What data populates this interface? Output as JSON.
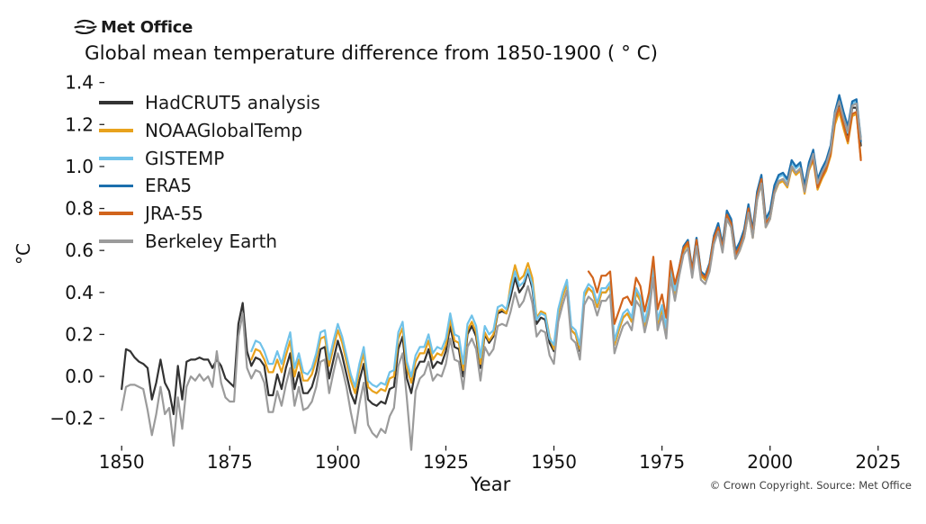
{
  "brand": {
    "logo_text": "Met Office"
  },
  "footer": {
    "copyright": "© Crown Copyright. Source: Met Office"
  },
  "chart_data": {
    "type": "line",
    "title": "Global mean temperature difference from 1850-1900 ( ° C)",
    "xlabel": "Year",
    "ylabel": "°C",
    "grid": false,
    "legend_position": "upper-left-inside",
    "xlim": [
      1846,
      2029
    ],
    "ylim": [
      -0.33,
      1.45
    ],
    "x_tick_values": [
      1850,
      1875,
      1900,
      1925,
      1950,
      1975,
      2000,
      2025
    ],
    "x_tick_labels": [
      "1850",
      "1875",
      "1900",
      "1925",
      "1950",
      "1975",
      "2000",
      "2025"
    ],
    "y_tick_values": [
      -0.2,
      0.0,
      0.2,
      0.4,
      0.6,
      0.8,
      1.0,
      1.2,
      1.4
    ],
    "y_tick_labels": [
      "−0.2",
      "0.0",
      "0.2",
      "0.4",
      "0.6",
      "0.8",
      "1.0",
      "1.2",
      "1.4"
    ],
    "series": [
      {
        "name": "HadCRUT5 analysis",
        "color": "#333333",
        "start_year": 1850,
        "values": [
          -0.06,
          0.13,
          0.12,
          0.09,
          0.07,
          0.06,
          0.04,
          -0.11,
          -0.03,
          0.08,
          -0.03,
          -0.07,
          -0.18,
          0.05,
          -0.11,
          0.07,
          0.08,
          0.08,
          0.09,
          0.08,
          0.08,
          0.04,
          0.08,
          0.05,
          -0.01,
          -0.03,
          -0.05,
          0.25,
          0.35,
          0.12,
          0.05,
          0.09,
          0.08,
          0.05,
          -0.09,
          -0.09,
          0.01,
          -0.06,
          0.04,
          0.11,
          -0.06,
          0.02,
          -0.08,
          -0.08,
          -0.05,
          0.02,
          0.13,
          0.14,
          -0.01,
          0.08,
          0.17,
          0.1,
          0.01,
          -0.08,
          -0.13,
          -0.02,
          0.06,
          -0.11,
          -0.13,
          -0.14,
          -0.12,
          -0.13,
          -0.06,
          -0.05,
          0.13,
          0.19,
          -0.01,
          -0.08,
          0.03,
          0.07,
          0.07,
          0.13,
          0.04,
          0.07,
          0.06,
          0.12,
          0.24,
          0.14,
          0.13,
          0.0,
          0.2,
          0.24,
          0.19,
          0.04,
          0.2,
          0.16,
          0.19,
          0.3,
          0.31,
          0.3,
          0.38,
          0.47,
          0.4,
          0.43,
          0.5,
          0.42,
          0.25,
          0.28,
          0.27,
          0.16,
          0.12,
          0.3,
          0.38,
          0.45,
          0.22,
          0.2,
          0.12,
          0.38,
          0.42,
          0.4,
          0.33,
          0.4,
          0.4,
          0.43,
          0.15,
          0.22,
          0.28,
          0.3,
          0.26,
          0.4,
          0.36,
          0.24,
          0.33,
          0.5,
          0.25,
          0.32,
          0.21,
          0.5,
          0.39,
          0.5,
          0.6,
          0.63,
          0.49,
          0.64,
          0.48,
          0.46,
          0.52,
          0.65,
          0.71,
          0.61,
          0.76,
          0.72,
          0.57,
          0.61,
          0.67,
          0.79,
          0.67,
          0.85,
          0.93,
          0.72,
          0.76,
          0.88,
          0.93,
          0.94,
          0.91,
          1.0,
          0.97,
          0.99,
          0.88,
          0.99,
          1.05,
          0.91,
          0.96,
          1.0,
          1.07,
          1.23,
          1.3,
          1.22,
          1.15,
          1.28,
          1.28,
          1.1
        ]
      },
      {
        "name": "NOAAGlobalTemp",
        "color": "#e8a21d",
        "start_year": 1880,
        "values": [
          0.08,
          0.13,
          0.12,
          0.08,
          0.02,
          0.02,
          0.08,
          0.02,
          0.1,
          0.17,
          0.0,
          0.08,
          -0.02,
          -0.02,
          0.01,
          0.08,
          0.18,
          0.19,
          0.05,
          0.14,
          0.22,
          0.16,
          0.07,
          -0.02,
          -0.08,
          0.03,
          0.11,
          -0.05,
          -0.07,
          -0.08,
          -0.06,
          -0.07,
          -0.01,
          0.0,
          0.18,
          0.23,
          0.04,
          -0.03,
          0.07,
          0.11,
          0.11,
          0.17,
          0.08,
          0.11,
          0.1,
          0.15,
          0.27,
          0.17,
          0.16,
          0.03,
          0.22,
          0.26,
          0.21,
          0.06,
          0.21,
          0.17,
          0.2,
          0.31,
          0.32,
          0.3,
          0.44,
          0.53,
          0.46,
          0.48,
          0.54,
          0.47,
          0.28,
          0.31,
          0.3,
          0.19,
          0.13,
          0.3,
          0.38,
          0.44,
          0.22,
          0.2,
          0.13,
          0.38,
          0.42,
          0.4,
          0.33,
          0.4,
          0.4,
          0.43,
          0.15,
          0.22,
          0.28,
          0.3,
          0.26,
          0.4,
          0.36,
          0.24,
          0.33,
          0.5,
          0.25,
          0.32,
          0.21,
          0.5,
          0.39,
          0.5,
          0.6,
          0.63,
          0.49,
          0.64,
          0.48,
          0.46,
          0.52,
          0.65,
          0.7,
          0.6,
          0.75,
          0.71,
          0.56,
          0.6,
          0.66,
          0.78,
          0.66,
          0.84,
          0.92,
          0.71,
          0.75,
          0.87,
          0.92,
          0.93,
          0.9,
          0.99,
          0.96,
          0.98,
          0.87,
          0.98,
          1.03,
          0.89,
          0.94,
          0.98,
          1.05,
          1.2,
          1.26,
          1.18,
          1.11,
          1.24,
          1.25,
          1.04
        ]
      },
      {
        "name": "GISTEMP",
        "color": "#70c2e9",
        "start_year": 1880,
        "values": [
          0.12,
          0.17,
          0.16,
          0.12,
          0.06,
          0.06,
          0.12,
          0.06,
          0.14,
          0.21,
          0.04,
          0.11,
          0.02,
          0.01,
          0.04,
          0.11,
          0.21,
          0.22,
          0.08,
          0.17,
          0.25,
          0.19,
          0.1,
          0.01,
          -0.05,
          0.06,
          0.14,
          -0.02,
          -0.04,
          -0.05,
          -0.03,
          -0.04,
          0.02,
          0.03,
          0.21,
          0.26,
          0.07,
          0.0,
          0.1,
          0.14,
          0.14,
          0.2,
          0.11,
          0.14,
          0.13,
          0.18,
          0.3,
          0.2,
          0.19,
          0.06,
          0.25,
          0.29,
          0.24,
          0.09,
          0.24,
          0.2,
          0.22,
          0.33,
          0.34,
          0.32,
          0.41,
          0.5,
          0.43,
          0.45,
          0.51,
          0.44,
          0.27,
          0.3,
          0.29,
          0.18,
          0.15,
          0.32,
          0.4,
          0.46,
          0.24,
          0.22,
          0.15,
          0.4,
          0.44,
          0.42,
          0.35,
          0.42,
          0.42,
          0.45,
          0.17,
          0.24,
          0.3,
          0.32,
          0.28,
          0.42,
          0.38,
          0.26,
          0.35,
          0.52,
          0.27,
          0.34,
          0.23,
          0.52,
          0.41,
          0.52,
          0.62,
          0.65,
          0.51,
          0.66,
          0.5,
          0.48,
          0.54,
          0.67,
          0.73,
          0.63,
          0.78,
          0.74,
          0.59,
          0.63,
          0.69,
          0.81,
          0.69,
          0.87,
          0.95,
          0.74,
          0.78,
          0.9,
          0.95,
          0.96,
          0.93,
          1.02,
          0.99,
          1.01,
          0.9,
          1.01,
          1.07,
          0.93,
          0.98,
          1.02,
          1.09,
          1.26,
          1.32,
          1.23,
          1.16,
          1.3,
          1.31,
          1.14
        ]
      },
      {
        "name": "ERA5",
        "color": "#1c6fad",
        "start_year": 1979,
        "values": [
          0.52,
          0.62,
          0.65,
          0.51,
          0.66,
          0.5,
          0.48,
          0.54,
          0.67,
          0.73,
          0.63,
          0.79,
          0.75,
          0.6,
          0.64,
          0.7,
          0.82,
          0.7,
          0.88,
          0.96,
          0.75,
          0.79,
          0.91,
          0.96,
          0.97,
          0.94,
          1.03,
          1.0,
          1.02,
          0.91,
          1.02,
          1.08,
          0.94,
          0.99,
          1.03,
          1.1,
          1.26,
          1.34,
          1.26,
          1.19,
          1.31,
          1.32,
          1.12
        ]
      },
      {
        "name": "JRA-55",
        "color": "#d1641c",
        "start_year": 1958,
        "values": [
          0.5,
          0.47,
          0.4,
          0.48,
          0.48,
          0.5,
          0.25,
          0.31,
          0.37,
          0.38,
          0.34,
          0.47,
          0.43,
          0.31,
          0.4,
          0.57,
          0.32,
          0.39,
          0.28,
          0.55,
          0.44,
          0.52,
          0.61,
          0.64,
          0.5,
          0.65,
          0.49,
          0.47,
          0.53,
          0.66,
          0.71,
          0.61,
          0.77,
          0.73,
          0.58,
          0.62,
          0.68,
          0.8,
          0.68,
          0.86,
          0.94,
          0.73,
          0.76,
          0.88,
          0.93,
          0.94,
          0.91,
          1.0,
          0.97,
          0.99,
          0.88,
          0.99,
          1.04,
          0.9,
          0.95,
          0.99,
          1.06,
          1.22,
          1.28,
          1.2,
          1.12,
          1.25,
          1.26,
          1.03
        ]
      },
      {
        "name": "Berkeley Earth",
        "color": "#9b9b9b",
        "start_year": 1850,
        "values": [
          -0.16,
          -0.05,
          -0.04,
          -0.04,
          -0.05,
          -0.06,
          -0.16,
          -0.28,
          -0.18,
          -0.05,
          -0.18,
          -0.15,
          -0.33,
          -0.1,
          -0.25,
          -0.05,
          0.0,
          -0.02,
          0.01,
          -0.02,
          0.0,
          -0.05,
          0.12,
          -0.03,
          -0.1,
          -0.12,
          -0.12,
          0.19,
          0.3,
          0.04,
          -0.01,
          0.03,
          0.02,
          -0.03,
          -0.17,
          -0.17,
          -0.07,
          -0.14,
          -0.04,
          0.04,
          -0.14,
          -0.05,
          -0.16,
          -0.15,
          -0.12,
          -0.05,
          0.07,
          0.08,
          -0.08,
          0.02,
          0.11,
          0.04,
          -0.05,
          -0.17,
          -0.27,
          -0.13,
          -0.03,
          -0.23,
          -0.27,
          -0.29,
          -0.25,
          -0.27,
          -0.19,
          -0.15,
          0.05,
          0.11,
          -0.11,
          -0.35,
          -0.07,
          -0.01,
          0.01,
          0.07,
          -0.02,
          0.01,
          0.0,
          0.06,
          0.18,
          0.08,
          0.07,
          -0.06,
          0.14,
          0.18,
          0.13,
          -0.02,
          0.14,
          0.1,
          0.13,
          0.24,
          0.25,
          0.24,
          0.31,
          0.4,
          0.33,
          0.36,
          0.43,
          0.35,
          0.19,
          0.22,
          0.21,
          0.1,
          0.06,
          0.26,
          0.34,
          0.41,
          0.18,
          0.16,
          0.08,
          0.34,
          0.38,
          0.36,
          0.29,
          0.36,
          0.36,
          0.39,
          0.11,
          0.18,
          0.24,
          0.26,
          0.22,
          0.36,
          0.33,
          0.21,
          0.3,
          0.47,
          0.22,
          0.29,
          0.18,
          0.47,
          0.36,
          0.48,
          0.58,
          0.61,
          0.47,
          0.62,
          0.46,
          0.44,
          0.5,
          0.63,
          0.69,
          0.59,
          0.75,
          0.71,
          0.56,
          0.6,
          0.66,
          0.78,
          0.66,
          0.84,
          0.92,
          0.71,
          0.75,
          0.87,
          0.93,
          0.94,
          0.91,
          1.0,
          0.97,
          0.99,
          0.88,
          0.99,
          1.06,
          0.92,
          0.97,
          1.01,
          1.08,
          1.25,
          1.31,
          1.23,
          1.17,
          1.29,
          1.3,
          1.13
        ]
      }
    ]
  }
}
